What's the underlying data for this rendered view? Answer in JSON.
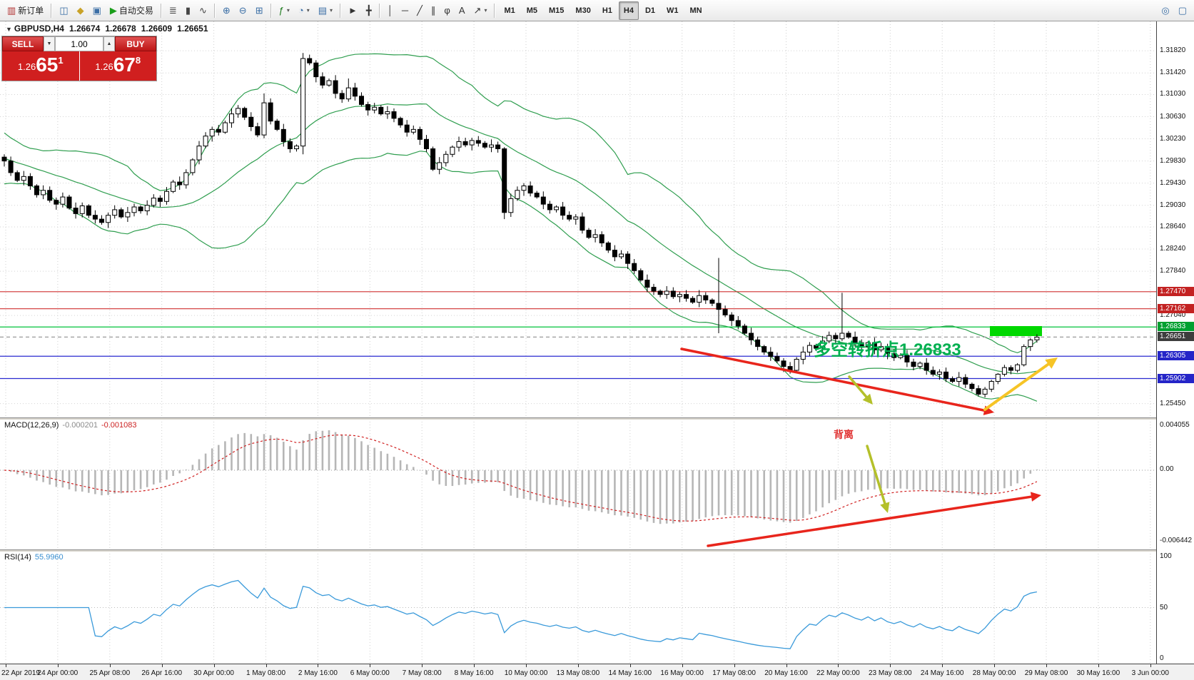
{
  "toolbar": {
    "groups": [
      {
        "items": [
          {
            "name": "new-order-button",
            "glyph": "▥",
            "label": "新订单",
            "color": "#b03030"
          }
        ]
      },
      {
        "items": [
          {
            "name": "market-watch-icon",
            "glyph": "◫",
            "color": "#3a6ea5"
          },
          {
            "name": "profiles-icon",
            "glyph": "◆",
            "color": "#c9a227"
          },
          {
            "name": "terminal-icon",
            "glyph": "▣",
            "color": "#3a6ea5"
          },
          {
            "name": "autotrade-button",
            "gly_note": "",
            "glyph": "▶",
            "label": "自动交易",
            "color": "#1a9e1a"
          }
        ]
      },
      {
        "items": [
          {
            "name": "bar-chart-icon",
            "glyph": "≣",
            "color": "#444444"
          },
          {
            "name": "candlestick-chart-icon",
            "glyph": "▮",
            "color": "#444444"
          },
          {
            "name": "line-chart-icon",
            "glyph": "∿",
            "color": "#444444"
          }
        ]
      },
      {
        "items": [
          {
            "name": "zoom-in-icon",
            "glyph": "⊕",
            "color": "#3a6ea5"
          },
          {
            "name": "zoom-out-icon",
            "glyph": "⊖",
            "color": "#3a6ea5"
          },
          {
            "name": "tile-windows-icon",
            "glyph": "⊞",
            "color": "#3a6ea5"
          }
        ]
      },
      {
        "items": [
          {
            "name": "indicators-icon",
            "glyph": "ƒ",
            "color": "#1a7a1a",
            "dropdown": true
          },
          {
            "name": "period-icon",
            "glyph": "◔",
            "color": "#3a6ea5",
            "dropdown": true
          },
          {
            "name": "template-icon",
            "glyph": "▤",
            "color": "#3a6ea5",
            "dropdown": true
          }
        ]
      },
      {
        "items": [
          {
            "name": "cursor-icon",
            "glyph": "►",
            "color": "#333333"
          },
          {
            "name": "crosshair-icon",
            "glyph": "╋",
            "color": "#333333"
          }
        ]
      },
      {
        "items": [
          {
            "name": "vertical-line-icon",
            "glyph": "│",
            "color": "#333333"
          },
          {
            "name": "horizontal-line-icon",
            "glyph": "─",
            "color": "#333333"
          },
          {
            "name": "trendline-icon",
            "glyph": "╱",
            "color": "#333333"
          },
          {
            "name": "channel-icon",
            "glyph": "∥",
            "color": "#333333"
          },
          {
            "name": "fibonacci-icon",
            "glyph": "φ",
            "color": "#333333"
          },
          {
            "name": "text-icon",
            "glyph": "A",
            "color": "#333333"
          },
          {
            "name": "arrows-icon",
            "glyph": "↗",
            "color": "#333333",
            "dropdown": true
          }
        ]
      }
    ],
    "timeframes": [
      "M1",
      "M5",
      "M15",
      "M30",
      "H1",
      "H4",
      "D1",
      "W1",
      "MN"
    ],
    "active_timeframe": "H4",
    "right_items": [
      {
        "name": "search-icon",
        "glyph": "◎",
        "color": "#3a6ea5"
      },
      {
        "name": "window-layout-icon",
        "glyph": "▢",
        "color": "#3a6ea5"
      }
    ]
  },
  "symbol_header": {
    "symbol": "GBPUSD,H4",
    "open": "1.26674",
    "high": "1.26678",
    "low": "1.26609",
    "close": "1.26651"
  },
  "one_click": {
    "sell_label": "SELL",
    "buy_label": "BUY",
    "volume": "1.00",
    "down_glyph": "▼",
    "up_glyph": "▲",
    "sell_prefix": "1.26",
    "sell_main": "65",
    "sell_sup": "1",
    "buy_prefix": "1.26",
    "buy_main": "67",
    "buy_sup": "8"
  },
  "price_scale": {
    "plain": [
      "1.31820",
      "1.31420",
      "1.31030",
      "1.30630",
      "1.30230",
      "1.29830",
      "1.29430",
      "1.29030",
      "1.28640",
      "1.28240",
      "1.27840",
      "1.27040",
      "1.25450"
    ],
    "badges": [
      {
        "text": "1.27470",
        "bg": "#c32222"
      },
      {
        "text": "1.27162",
        "bg": "#c32222"
      },
      {
        "text": "1.26833",
        "bg": "#00a030"
      },
      {
        "text": "1.26651",
        "bg": "#3d3d3d"
      },
      {
        "text": "1.26305",
        "bg": "#2525c8"
      },
      {
        "text": "1.25902",
        "bg": "#2525c8"
      }
    ]
  },
  "key_levels": [
    {
      "price": 1.2747,
      "color": "#d03131",
      "style": "solid"
    },
    {
      "price": 1.27162,
      "color": "#d03131",
      "style": "solid"
    },
    {
      "price": 1.26833,
      "color": "#00c33a",
      "style": "solid"
    },
    {
      "price": 1.26651,
      "color": "#9a9a9a",
      "style": "dash"
    },
    {
      "price": 1.26305,
      "color": "#2a2ad0",
      "style": "solid"
    },
    {
      "price": 1.25902,
      "color": "#2a2ad0",
      "style": "solid"
    }
  ],
  "annotations": {
    "turning_point": "多空转折点1.26833",
    "turning_color": "#00b050",
    "divergence": "背离",
    "divergence_color": "#e03030",
    "highlight_color": "#00d800",
    "trend_color": "#e8251c",
    "arrow_color": "#f6c426",
    "olive_color": "#b4c02a"
  },
  "macd": {
    "label": "MACD(12,26,9)",
    "value1": "-0.000201",
    "value2": "-0.001083",
    "scale": [
      "0.004055",
      "0.00",
      "-0.006442"
    ]
  },
  "rsi": {
    "label": "RSI(14)",
    "value": "55.9960",
    "scale": [
      "100",
      "50",
      "0"
    ]
  },
  "time_axis": [
    "22 Apr 2019",
    "24 Apr 00:00",
    "25 Apr 08:00",
    "26 Apr 16:00",
    "30 Apr 00:00",
    "1 May 08:00",
    "2 May 16:00",
    "6 May 00:00",
    "7 May 08:00",
    "8 May 16:00",
    "10 May 00:00",
    "13 May 08:00",
    "14 May 16:00",
    "16 May 00:00",
    "17 May 08:00",
    "20 May 16:00",
    "22 May 00:00",
    "23 May 08:00",
    "24 May 16:00",
    "28 May 00:00",
    "29 May 08:00",
    "30 May 16:00",
    "3 Jun 00:00"
  ],
  "chart_data": {
    "type": "candlestick",
    "symbol": "GBPUSD",
    "timeframe": "H4",
    "price_base": 1.2,
    "unit": 0.0001,
    "bollinger_period": 20,
    "bollinger_deviation": 2,
    "band_seed": [
      1045,
      1038,
      1030,
      1022,
      1015,
      1008,
      1000,
      992,
      985,
      978,
      985,
      978,
      970,
      975,
      968,
      972,
      965,
      970,
      962,
      958
    ],
    "candles": [
      [
        990,
        995,
        973,
        983
      ],
      [
        983,
        991,
        956,
        962
      ],
      [
        962,
        966,
        945,
        948
      ],
      [
        948,
        965,
        939,
        955
      ],
      [
        955,
        961,
        931,
        938
      ],
      [
        938,
        941,
        917,
        922
      ],
      [
        922,
        939,
        914,
        930
      ],
      [
        930,
        937,
        908,
        912
      ],
      [
        912,
        917,
        895,
        905
      ],
      [
        905,
        926,
        899,
        918
      ],
      [
        918,
        922,
        895,
        898
      ],
      [
        898,
        908,
        879,
        888
      ],
      [
        888,
        908,
        881,
        902
      ],
      [
        902,
        905,
        880,
        885
      ],
      [
        885,
        894,
        870,
        878
      ],
      [
        878,
        885,
        868,
        872
      ],
      [
        872,
        890,
        862,
        885
      ],
      [
        885,
        903,
        879,
        895
      ],
      [
        895,
        899,
        879,
        882
      ],
      [
        882,
        900,
        873,
        890
      ],
      [
        890,
        906,
        883,
        900
      ],
      [
        900,
        903,
        888,
        893
      ],
      [
        893,
        912,
        885,
        903
      ],
      [
        903,
        923,
        899,
        916
      ],
      [
        916,
        921,
        900,
        910
      ],
      [
        910,
        936,
        904,
        928
      ],
      [
        928,
        949,
        925,
        945
      ],
      [
        945,
        955,
        931,
        940
      ],
      [
        940,
        968,
        933,
        962
      ],
      [
        962,
        988,
        957,
        985
      ],
      [
        985,
        1019,
        977,
        1010
      ],
      [
        1010,
        1035,
        1006,
        1028
      ],
      [
        1028,
        1045,
        1018,
        1040
      ],
      [
        1040,
        1048,
        1029,
        1035
      ],
      [
        1035,
        1056,
        1032,
        1052
      ],
      [
        1052,
        1078,
        1043,
        1068
      ],
      [
        1068,
        1084,
        1061,
        1078
      ],
      [
        1078,
        1081,
        1057,
        1062
      ],
      [
        1062,
        1071,
        1037,
        1045
      ],
      [
        1045,
        1052,
        1026,
        1030
      ],
      [
        1030,
        1105,
        1024,
        1088
      ],
      [
        1088,
        1096,
        1049,
        1055
      ],
      [
        1055,
        1059,
        1037,
        1040
      ],
      [
        1040,
        1050,
        1009,
        1018
      ],
      [
        1018,
        1024,
        998,
        1005
      ],
      [
        1005,
        1013,
        1000,
        1010
      ],
      [
        1010,
        1178,
        995,
        1168
      ],
      [
        1168,
        1175,
        1156,
        1160
      ],
      [
        1160,
        1165,
        1125,
        1135
      ],
      [
        1135,
        1143,
        1114,
        1120
      ],
      [
        1120,
        1132,
        1117,
        1128
      ],
      [
        1128,
        1138,
        1096,
        1105
      ],
      [
        1105,
        1111,
        1088,
        1095
      ],
      [
        1095,
        1132,
        1090,
        1115
      ],
      [
        1115,
        1124,
        1092,
        1100
      ],
      [
        1100,
        1107,
        1081,
        1085
      ],
      [
        1085,
        1090,
        1065,
        1075
      ],
      [
        1075,
        1088,
        1069,
        1080
      ],
      [
        1080,
        1084,
        1065,
        1068
      ],
      [
        1068,
        1082,
        1059,
        1072
      ],
      [
        1072,
        1078,
        1053,
        1060
      ],
      [
        1060,
        1063,
        1043,
        1048
      ],
      [
        1048,
        1057,
        1027,
        1035
      ],
      [
        1035,
        1047,
        1031,
        1040
      ],
      [
        1040,
        1045,
        1012,
        1022
      ],
      [
        1022,
        1030,
        999,
        1005
      ],
      [
        1005,
        1009,
        965,
        968
      ],
      [
        968,
        990,
        959,
        980
      ],
      [
        980,
        1001,
        973,
        995
      ],
      [
        995,
        1011,
        990,
        1008
      ],
      [
        1008,
        1027,
        1000,
        1018
      ],
      [
        1018,
        1025,
        1008,
        1012
      ],
      [
        1012,
        1025,
        1002,
        1020
      ],
      [
        1020,
        1028,
        1009,
        1015
      ],
      [
        1015,
        1019,
        1005,
        1008
      ],
      [
        1008,
        1022,
        999,
        1012
      ],
      [
        1012,
        1018,
        998,
        1005
      ],
      [
        1005,
        1008,
        878,
        890
      ],
      [
        890,
        924,
        882,
        915
      ],
      [
        915,
        937,
        911,
        930
      ],
      [
        930,
        943,
        920,
        938
      ],
      [
        938,
        946,
        919,
        925
      ],
      [
        925,
        929,
        915,
        918
      ],
      [
        918,
        928,
        896,
        905
      ],
      [
        905,
        911,
        888,
        895
      ],
      [
        895,
        903,
        890,
        900
      ],
      [
        900,
        909,
        877,
        885
      ],
      [
        885,
        892,
        874,
        878
      ],
      [
        878,
        887,
        868,
        882
      ],
      [
        882,
        890,
        852,
        858
      ],
      [
        858,
        862,
        842,
        845
      ],
      [
        845,
        860,
        836,
        850
      ],
      [
        850,
        856,
        828,
        835
      ],
      [
        835,
        838,
        817,
        822
      ],
      [
        822,
        831,
        802,
        810
      ],
      [
        810,
        822,
        806,
        815
      ],
      [
        815,
        820,
        788,
        798
      ],
      [
        798,
        806,
        779,
        785
      ],
      [
        785,
        789,
        765,
        768
      ],
      [
        768,
        778,
        746,
        755
      ],
      [
        755,
        761,
        741,
        748
      ],
      [
        748,
        751,
        737,
        742
      ],
      [
        742,
        757,
        734,
        748
      ],
      [
        748,
        755,
        734,
        738
      ],
      [
        738,
        747,
        728,
        742
      ],
      [
        742,
        750,
        729,
        735
      ],
      [
        735,
        739,
        725,
        728
      ],
      [
        728,
        750,
        719,
        740
      ],
      [
        740,
        746,
        725,
        732
      ],
      [
        732,
        735,
        721,
        726
      ],
      [
        726,
        808,
        672,
        715
      ],
      [
        715,
        722,
        701,
        705
      ],
      [
        705,
        710,
        685,
        695
      ],
      [
        695,
        703,
        679,
        685
      ],
      [
        685,
        689,
        669,
        672
      ],
      [
        672,
        682,
        651,
        660
      ],
      [
        660,
        666,
        641,
        648
      ],
      [
        648,
        651,
        633,
        638
      ],
      [
        638,
        647,
        622,
        630
      ],
      [
        630,
        637,
        618,
        622
      ],
      [
        622,
        627,
        602,
        612
      ],
      [
        612,
        620,
        599,
        605
      ],
      [
        605,
        629,
        602,
        625
      ],
      [
        625,
        648,
        616,
        638
      ],
      [
        638,
        656,
        631,
        650
      ],
      [
        650,
        653,
        640,
        645
      ],
      [
        645,
        667,
        637,
        658
      ],
      [
        658,
        675,
        654,
        668
      ],
      [
        668,
        673,
        652,
        662
      ],
      [
        662,
        745,
        658,
        672
      ],
      [
        672,
        676,
        662,
        665
      ],
      [
        665,
        675,
        646,
        655
      ],
      [
        655,
        661,
        641,
        648
      ],
      [
        648,
        658,
        643,
        655
      ],
      [
        655,
        664,
        634,
        642
      ],
      [
        642,
        655,
        638,
        648
      ],
      [
        648,
        653,
        625,
        635
      ],
      [
        635,
        643,
        622,
        628
      ],
      [
        628,
        636,
        625,
        632
      ],
      [
        632,
        642,
        611,
        620
      ],
      [
        620,
        626,
        605,
        612
      ],
      [
        612,
        621,
        607,
        618
      ],
      [
        618,
        627,
        597,
        605
      ],
      [
        605,
        612,
        594,
        598
      ],
      [
        598,
        607,
        588,
        602
      ],
      [
        602,
        610,
        584,
        590
      ],
      [
        590,
        594,
        582,
        585
      ],
      [
        585,
        602,
        576,
        592
      ],
      [
        592,
        598,
        573,
        580
      ],
      [
        580,
        583,
        567,
        572
      ],
      [
        572,
        578,
        558,
        562
      ],
      [
        562,
        575,
        556,
        571
      ],
      [
        571,
        588,
        566,
        585
      ],
      [
        585,
        600,
        580,
        598
      ],
      [
        598,
        615,
        594,
        610
      ],
      [
        610,
        614,
        598,
        605
      ],
      [
        605,
        618,
        601,
        615
      ],
      [
        615,
        652,
        612,
        648
      ],
      [
        648,
        663,
        640,
        660
      ],
      [
        660,
        670,
        655,
        665
      ]
    ]
  }
}
